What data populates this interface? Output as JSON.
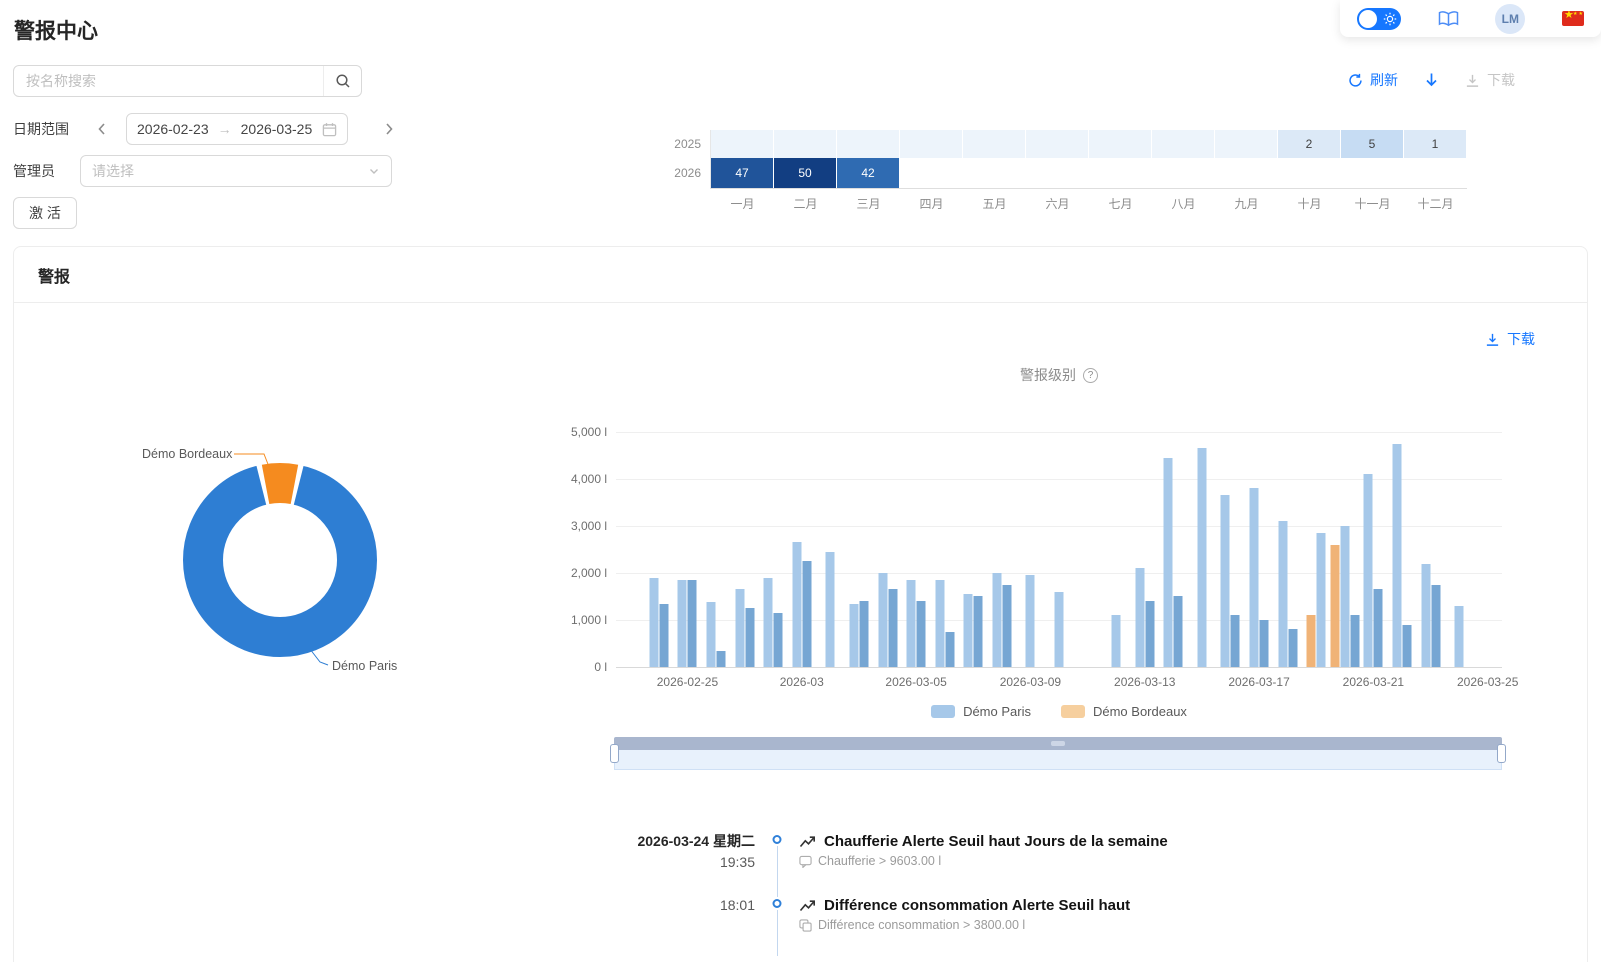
{
  "page": {
    "title": "警报中心"
  },
  "topbar": {
    "avatar": "LM",
    "theme_toggle_state": "on"
  },
  "toolbar": {
    "search_placeholder": "按名称搜索",
    "refresh_label": "刷新",
    "download_label": "下载"
  },
  "filters": {
    "date_range_label": "日期范围",
    "date_start": "2026-02-23",
    "date_end": "2026-03-25",
    "admin_label": "管理员",
    "admin_placeholder": "请选择",
    "activate_label": "激 活"
  },
  "heatmap": {
    "months": [
      "一月",
      "二月",
      "三月",
      "四月",
      "五月",
      "六月",
      "七月",
      "八月",
      "九月",
      "十月",
      "十一月",
      "十二月"
    ],
    "rows": [
      {
        "year": "2025",
        "cells": [
          {
            "value": "",
            "bg": "#edf4fb"
          },
          {
            "value": "",
            "bg": "#edf4fb"
          },
          {
            "value": "",
            "bg": "#edf4fb"
          },
          {
            "value": "",
            "bg": "#edf4fb"
          },
          {
            "value": "",
            "bg": "#edf4fb"
          },
          {
            "value": "",
            "bg": "#edf4fb"
          },
          {
            "value": "",
            "bg": "#edf4fb"
          },
          {
            "value": "",
            "bg": "#edf4fb"
          },
          {
            "value": "",
            "bg": "#edf4fb"
          },
          {
            "value": "2",
            "bg": "#dce9f7",
            "fg": "#404040"
          },
          {
            "value": "5",
            "bg": "#c6dcf3",
            "fg": "#404040"
          },
          {
            "value": "1",
            "bg": "#dce9f7",
            "fg": "#404040"
          }
        ]
      },
      {
        "year": "2026",
        "cells": [
          {
            "value": "47",
            "bg": "#20549a",
            "fg": "#ffffff"
          },
          {
            "value": "50",
            "bg": "#123e82",
            "fg": "#ffffff"
          },
          {
            "value": "42",
            "bg": "#2f6bb2",
            "fg": "#ffffff"
          },
          {
            "value": "",
            "bg": "transparent"
          },
          {
            "value": "",
            "bg": "transparent"
          },
          {
            "value": "",
            "bg": "transparent"
          },
          {
            "value": "",
            "bg": "transparent"
          },
          {
            "value": "",
            "bg": "transparent"
          },
          {
            "value": "",
            "bg": "transparent"
          },
          {
            "value": "",
            "bg": "transparent"
          },
          {
            "value": "",
            "bg": "transparent"
          },
          {
            "value": "",
            "bg": "transparent"
          }
        ]
      }
    ]
  },
  "card": {
    "title": "警报",
    "download_label": "下载",
    "level_label": "警报级别"
  },
  "chart_data": [
    {
      "type": "pie",
      "title": "警报级别",
      "unit": "l",
      "slices": [
        {
          "name": "Démo Paris",
          "share": 0.94,
          "color": "#2e7ed3"
        },
        {
          "name": "Démo Bordeaux",
          "share": 0.06,
          "color": "#f58b1f"
        }
      ]
    },
    {
      "type": "bar",
      "title": "警报级别",
      "unit": "l",
      "ymax": 5000,
      "y_ticks": [
        "5,000 l",
        "4,000 l",
        "3,000 l",
        "2,000 l",
        "1,000 l",
        "0 l"
      ],
      "x_tick_labels": [
        "2026-02-25",
        "2026-03",
        "2026-03-05",
        "2026-03-09",
        "2026-03-13",
        "2026-03-17",
        "2026-03-21",
        "2026-03-25"
      ],
      "x_tick_days": [
        2,
        6,
        10,
        14,
        18,
        22,
        26,
        30
      ],
      "legend": [
        {
          "name": "Démo Paris",
          "color": "#a6c8e9"
        },
        {
          "name": "Démo Bordeaux",
          "color": "#f6cf9e"
        }
      ],
      "series_colors": {
        "paris": [
          "#a6c8e9",
          "#76a6d3"
        ],
        "bordeaux": [
          "#f0b377",
          "#f6cf9e"
        ]
      },
      "days": [
        {
          "date": "2026-02-23",
          "values": []
        },
        {
          "date": "2026-02-24",
          "values": [
            {
              "s": "paris",
              "v": 1900
            },
            {
              "s": "paris",
              "v": 1330
            }
          ]
        },
        {
          "date": "2026-02-25",
          "values": [
            {
              "s": "paris",
              "v": 1850
            },
            {
              "s": "paris",
              "v": 1850
            }
          ]
        },
        {
          "date": "2026-02-26",
          "values": [
            {
              "s": "paris",
              "v": 1380
            },
            {
              "s": "paris",
              "v": 350
            }
          ]
        },
        {
          "date": "2026-02-27",
          "values": [
            {
              "s": "paris",
              "v": 1650
            },
            {
              "s": "paris",
              "v": 1250
            }
          ]
        },
        {
          "date": "2026-02-28",
          "values": [
            {
              "s": "paris",
              "v": 1900
            },
            {
              "s": "paris",
              "v": 1150
            }
          ]
        },
        {
          "date": "2026-03-01",
          "values": [
            {
              "s": "paris",
              "v": 2650
            },
            {
              "s": "paris",
              "v": 2250
            }
          ]
        },
        {
          "date": "2026-03-02",
          "values": [
            {
              "s": "paris",
              "v": 2450
            }
          ]
        },
        {
          "date": "2026-03-03",
          "values": [
            {
              "s": "paris",
              "v": 1350
            },
            {
              "s": "paris",
              "v": 1400
            }
          ]
        },
        {
          "date": "2026-03-04",
          "values": [
            {
              "s": "paris",
              "v": 2000
            },
            {
              "s": "paris",
              "v": 1650
            }
          ]
        },
        {
          "date": "2026-03-05",
          "values": [
            {
              "s": "paris",
              "v": 1850
            },
            {
              "s": "paris",
              "v": 1400
            }
          ]
        },
        {
          "date": "2026-03-06",
          "values": [
            {
              "s": "paris",
              "v": 1850
            },
            {
              "s": "paris",
              "v": 750
            }
          ]
        },
        {
          "date": "2026-03-07",
          "values": [
            {
              "s": "paris",
              "v": 1550
            },
            {
              "s": "paris",
              "v": 1500
            }
          ]
        },
        {
          "date": "2026-03-08",
          "values": [
            {
              "s": "paris",
              "v": 2000
            },
            {
              "s": "paris",
              "v": 1750
            }
          ]
        },
        {
          "date": "2026-03-09",
          "values": [
            {
              "s": "paris",
              "v": 1950
            }
          ]
        },
        {
          "date": "2026-03-10",
          "values": [
            {
              "s": "paris",
              "v": 1600
            }
          ]
        },
        {
          "date": "2026-03-11",
          "values": []
        },
        {
          "date": "2026-03-12",
          "values": [
            {
              "s": "paris",
              "v": 1100
            }
          ]
        },
        {
          "date": "2026-03-13",
          "values": [
            {
              "s": "paris",
              "v": 2100
            },
            {
              "s": "paris",
              "v": 1400
            }
          ]
        },
        {
          "date": "2026-03-14",
          "values": [
            {
              "s": "paris",
              "v": 4450
            },
            {
              "s": "paris",
              "v": 1500
            }
          ]
        },
        {
          "date": "2026-03-15",
          "values": [
            {
              "s": "paris",
              "v": 4650
            }
          ]
        },
        {
          "date": "2026-03-16",
          "values": [
            {
              "s": "paris",
              "v": 3650
            },
            {
              "s": "paris",
              "v": 1100
            }
          ]
        },
        {
          "date": "2026-03-17",
          "values": [
            {
              "s": "paris",
              "v": 3800
            },
            {
              "s": "paris",
              "v": 1000
            }
          ]
        },
        {
          "date": "2026-03-18",
          "values": [
            {
              "s": "paris",
              "v": 3100
            },
            {
              "s": "paris",
              "v": 800
            }
          ]
        },
        {
          "date": "2026-03-19",
          "values": [
            {
              "s": "bordeaux",
              "v": 1100
            },
            {
              "s": "paris",
              "v": 2850
            }
          ]
        },
        {
          "date": "2026-03-20",
          "values": [
            {
              "s": "bordeaux",
              "v": 2600
            },
            {
              "s": "paris",
              "v": 3000
            },
            {
              "s": "paris",
              "v": 1100
            }
          ]
        },
        {
          "date": "2026-03-21",
          "values": [
            {
              "s": "paris",
              "v": 4100
            },
            {
              "s": "paris",
              "v": 1650
            }
          ]
        },
        {
          "date": "2026-03-22",
          "values": [
            {
              "s": "paris",
              "v": 4750
            },
            {
              "s": "paris",
              "v": 900
            }
          ]
        },
        {
          "date": "2026-03-23",
          "values": [
            {
              "s": "paris",
              "v": 2200
            },
            {
              "s": "paris",
              "v": 1750
            }
          ]
        },
        {
          "date": "2026-03-24",
          "values": [
            {
              "s": "paris",
              "v": 1300
            }
          ]
        },
        {
          "date": "2026-03-25",
          "values": []
        }
      ]
    }
  ],
  "timeline": [
    {
      "date": "2026-03-24 星期二",
      "time": "19:35",
      "title": "Chaufferie Alerte Seuil haut Jours de la semaine",
      "detail": "Chaufferie > 9603.00 l",
      "title_icon": "trend-up-icon",
      "detail_icon": "message-icon"
    },
    {
      "date": "",
      "time": "18:01",
      "title": "Différence consommation Alerte Seuil haut",
      "detail": "Différence consommation > 3800.00 l",
      "title_icon": "trend-up-icon",
      "detail_icon": "copy-icon"
    }
  ]
}
